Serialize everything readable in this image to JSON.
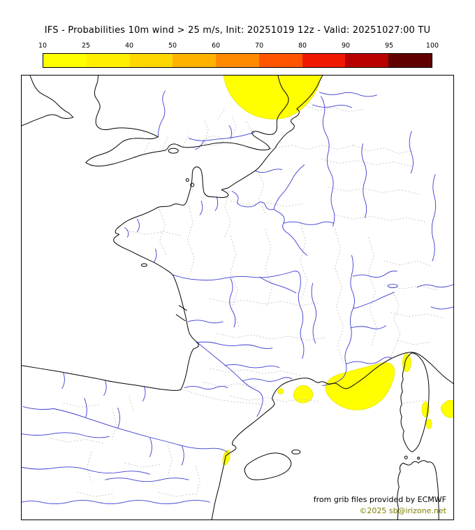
{
  "title": "IFS - Probabilities 10m wind > 25 m/s, Init: 20251019 12z - Valid: 20251027:00 TU",
  "legend": {
    "ticks": [
      "10",
      "25",
      "40",
      "50",
      "60",
      "70",
      "80",
      "90",
      "95",
      "100"
    ],
    "segment_colors": [
      "#ffff00",
      "#fff000",
      "#ffd700",
      "#ffb300",
      "#ff8a00",
      "#ff5500",
      "#f01800",
      "#b80000",
      "#600000"
    ]
  },
  "map": {
    "attribution": "from grib files provided by ECMWF",
    "copyright": "©2025 sb@irizone.net",
    "colors": {
      "coastline": "#000000",
      "river": "#3b3bd1",
      "admin_boundary": "#c4c4c4",
      "probability_10_25": "#ffff00",
      "background": "#ffffff"
    },
    "probability_areas": [
      "North Sea off the Dutch coast",
      "Gulf of Lion south of Marseille",
      "sea west of the Gulf of Lion",
      "Cap Corse",
      "east coast of Corsica",
      "Tyrrhenian Sea at right map edge",
      "Spanish coast south of the Ebro delta"
    ]
  }
}
